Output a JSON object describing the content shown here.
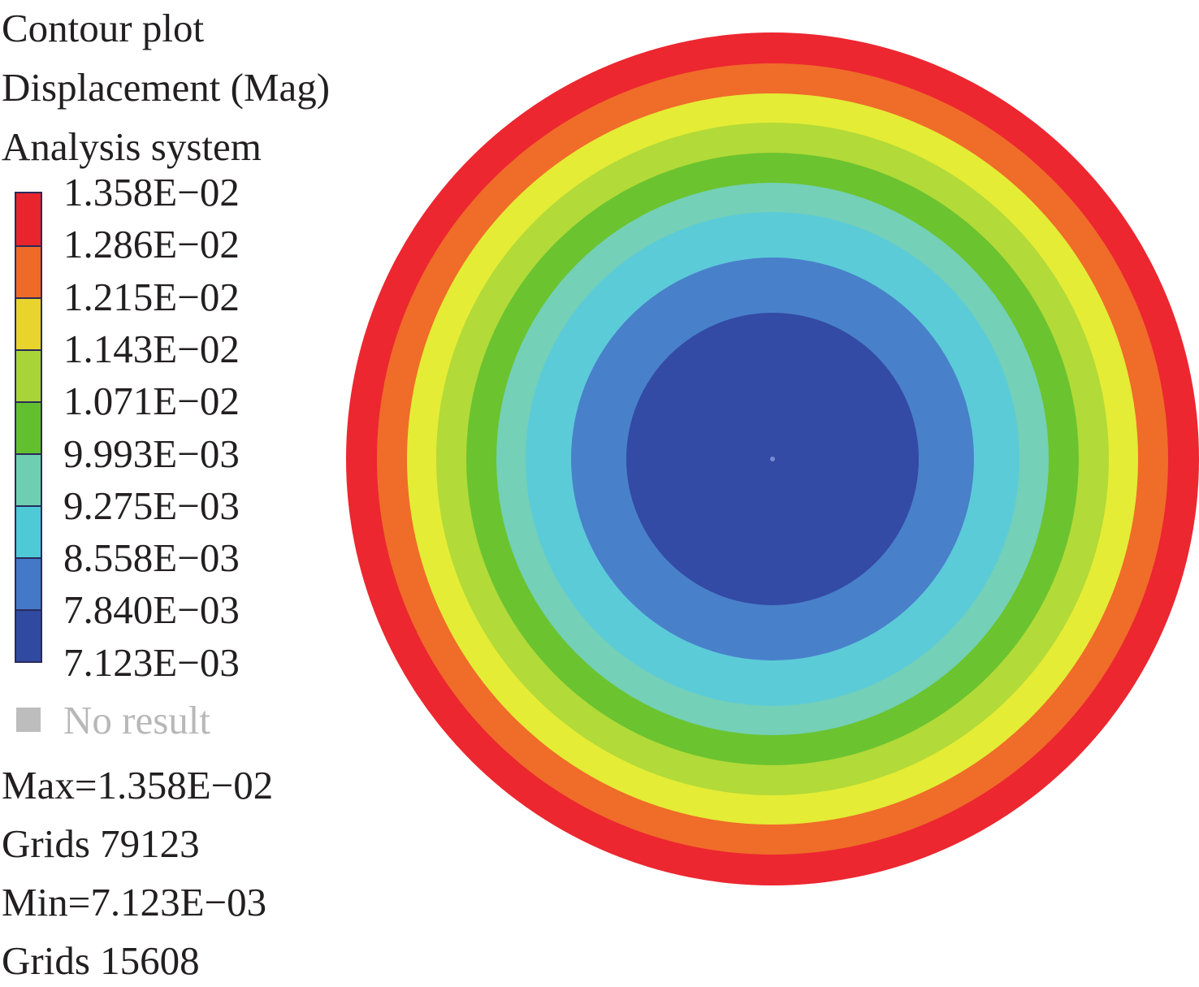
{
  "header": {
    "line1": "Contour plot",
    "line2": "Displacement (Mag)",
    "line3": "Analysis system"
  },
  "legend": {
    "ticks": [
      "1.358E−02",
      "1.286E−02",
      "1.215E−02",
      "1.143E−02",
      "1.071E−02",
      "9.993E−03",
      "9.275E−03",
      "8.558E−03",
      "7.840E−03",
      "7.123E−03"
    ],
    "band_colors": [
      "#e8242c",
      "#ef6a28",
      "#e8d42c",
      "#a8d438",
      "#62c02e",
      "#6ecfb0",
      "#4ec9d6",
      "#4479c8",
      "#2f4aa0"
    ],
    "no_result_label": "No result",
    "no_result_color": "#bdbdbd"
  },
  "stats": {
    "max": "Max=1.358E−02",
    "max_grid": "Grids 79123",
    "min": "Min=7.123E−03",
    "min_grid": "Grids 15608"
  },
  "plot": {
    "rings_outer_to_inner": [
      {
        "color": "#ec2730"
      },
      {
        "color": "#f06c29"
      },
      {
        "color": "#e4ec36"
      },
      {
        "color": "#b2da38"
      },
      {
        "color": "#6bc32f"
      },
      {
        "color": "#74d0b6"
      },
      {
        "color": "#5ccbd8"
      },
      {
        "color": "#4980ca"
      },
      {
        "color": "#334ba5"
      }
    ]
  }
}
